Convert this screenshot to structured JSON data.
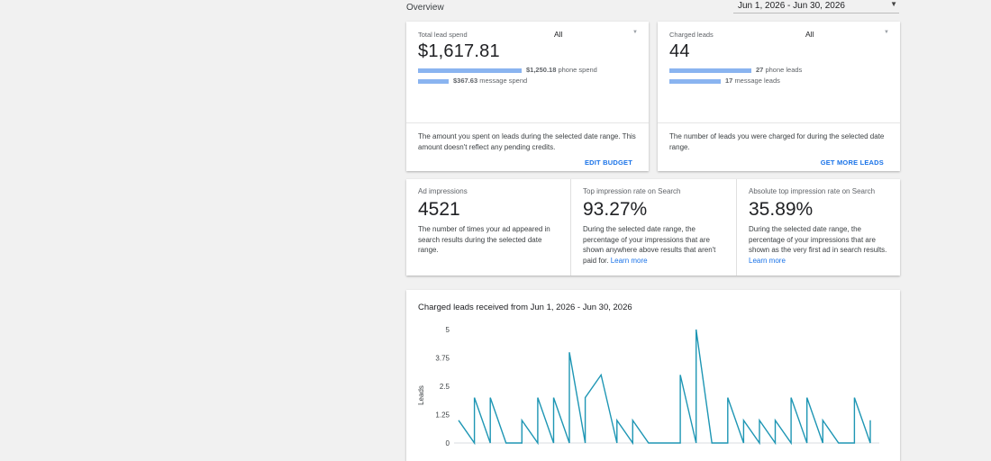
{
  "header": {
    "title": "Overview",
    "date_range": "Jun 1, 2026 - Jun 30, 2026"
  },
  "spend_card": {
    "label": "Total lead spend",
    "filter": "All",
    "value": "$1,617.81",
    "phone_amount": "$1,250.18",
    "phone_label": "phone spend",
    "phone_fraction": 0.773,
    "message_amount": "$367.63",
    "message_label": "message spend",
    "message_fraction": 0.227,
    "description": "The amount you spent on leads during the selected date range. This amount doesn't reflect any pending credits.",
    "action": "EDIT BUDGET"
  },
  "leads_card": {
    "label": "Charged leads",
    "filter": "All",
    "value": "44",
    "phone_count": "27",
    "phone_label": "phone leads",
    "phone_fraction": 0.614,
    "message_count": "17",
    "message_label": "message leads",
    "message_fraction": 0.386,
    "description": "The number of leads you were charged for during the selected date range.",
    "action": "GET MORE LEADS"
  },
  "stats": {
    "impressions": {
      "label": "Ad impressions",
      "value": "4521",
      "description": "The number of times your ad appeared in search results during the selected date range."
    },
    "top_rate": {
      "label": "Top impression rate on Search",
      "value": "93.27%",
      "description": "During the selected date range, the percentage of your impressions that are shown anywhere above results that aren't paid for.",
      "link": "Learn more"
    },
    "abs_top_rate": {
      "label": "Absolute top impression rate on Search",
      "value": "35.89%",
      "description": "During the selected date range, the percentage of your impressions that are shown as the very first ad in search results.",
      "link": "Learn more"
    }
  },
  "chart_data": {
    "type": "line",
    "title": "Charged leads received from Jun 1, 2026 - Jun 30, 2026",
    "ylabel": "Leads",
    "xlabel": "",
    "ylim": [
      0,
      5
    ],
    "yticks": [
      "5",
      "3.75",
      "2.5",
      "1.25",
      "0"
    ],
    "color": "#1e96b4",
    "points": [
      [
        0,
        1
      ],
      [
        1,
        0
      ],
      [
        1,
        2
      ],
      [
        2,
        0
      ],
      [
        2,
        2
      ],
      [
        3,
        0
      ],
      [
        4,
        0
      ],
      [
        4,
        1
      ],
      [
        5,
        0
      ],
      [
        5,
        2
      ],
      [
        6,
        0
      ],
      [
        6,
        2
      ],
      [
        7,
        0
      ],
      [
        7,
        4
      ],
      [
        8,
        0
      ],
      [
        8,
        2
      ],
      [
        9,
        3
      ],
      [
        10,
        0
      ],
      [
        10,
        1
      ],
      [
        11,
        0
      ],
      [
        11,
        1
      ],
      [
        12,
        0
      ],
      [
        13,
        0
      ],
      [
        14,
        0
      ],
      [
        14,
        3
      ],
      [
        15,
        0
      ],
      [
        15,
        5
      ],
      [
        16,
        0
      ],
      [
        17,
        0
      ],
      [
        17,
        2
      ],
      [
        18,
        0
      ],
      [
        18,
        1
      ],
      [
        19,
        0
      ],
      [
        19,
        1
      ],
      [
        20,
        0
      ],
      [
        20,
        1
      ],
      [
        21,
        0
      ],
      [
        21,
        2
      ],
      [
        22,
        0
      ],
      [
        22,
        2
      ],
      [
        23,
        0
      ],
      [
        23,
        1
      ],
      [
        24,
        0
      ],
      [
        25,
        0
      ],
      [
        25,
        2
      ],
      [
        26,
        0
      ],
      [
        26,
        1
      ]
    ]
  }
}
